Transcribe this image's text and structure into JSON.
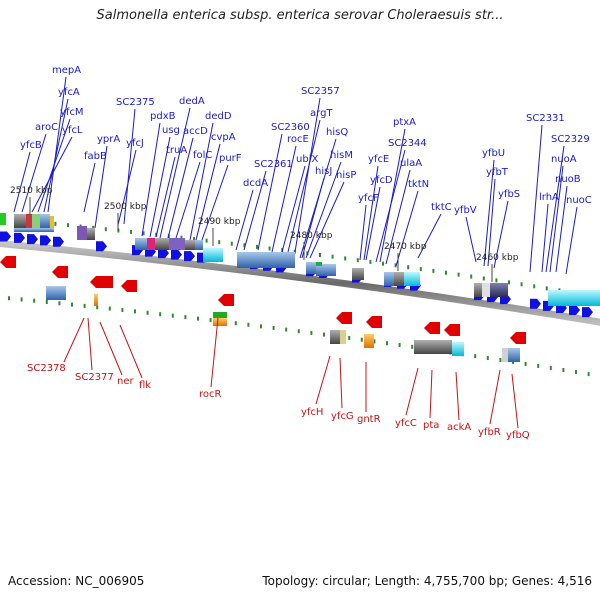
{
  "title": "Salmonella enterica subsp. enterica serovar Choleraesuis str...",
  "footer": {
    "accession": "Accession: NC_006905",
    "stats": "Topology: circular; Length: 4,755,700 bp; Genes: 4,516"
  },
  "ticks": [
    {
      "id": "tick-2510",
      "label": "2510 kbp"
    },
    {
      "id": "tick-2500",
      "label": "2500 kbp"
    },
    {
      "id": "tick-2490",
      "label": "2490 kbp"
    },
    {
      "id": "tick-2480",
      "label": "2480 kbp"
    },
    {
      "id": "tick-2470",
      "label": "2470 kbp"
    },
    {
      "id": "tick-2460",
      "label": "2460 kbp"
    }
  ],
  "forward_genes": [
    "yfcB",
    "aroC",
    "yfcL",
    "yfcM",
    "yfcA",
    "mepA",
    "fabB",
    "yprA",
    "yfcJ",
    "SC2375",
    "truA",
    "usg",
    "pdxB",
    "folC",
    "accD",
    "dedA",
    "purF",
    "cvpA",
    "dedD",
    "dcdA",
    "SC2361",
    "SC2360",
    "rocE",
    "ubiX",
    "argT",
    "SC2357",
    "hisJ",
    "hisP",
    "hisM",
    "hisQ",
    "yfcF",
    "yfcD",
    "yfcE",
    "SC2344",
    "ulaA",
    "ptxA",
    "tktN",
    "tktC",
    "yfbV",
    "yfbT",
    "yfbU",
    "yfbS",
    "lrhA",
    "SC2331",
    "nuoA",
    "SC2329",
    "nuoB",
    "nuoC"
  ],
  "reverse_genes": [
    "SC2378",
    "SC2377",
    "ner",
    "flk",
    "rocR",
    "yfcH",
    "yfcG",
    "gntR",
    "yfcC",
    "pta",
    "ackA",
    "yfbR",
    "yfbQ"
  ],
  "colors": {
    "forward_arrow": "#1010e0",
    "reverse_arrow": "#e00000",
    "forward_label": "#1a1ad0",
    "reverse_label": "#cc1111",
    "tick_marker": "#2e8b2e",
    "backbone": "#777777"
  }
}
